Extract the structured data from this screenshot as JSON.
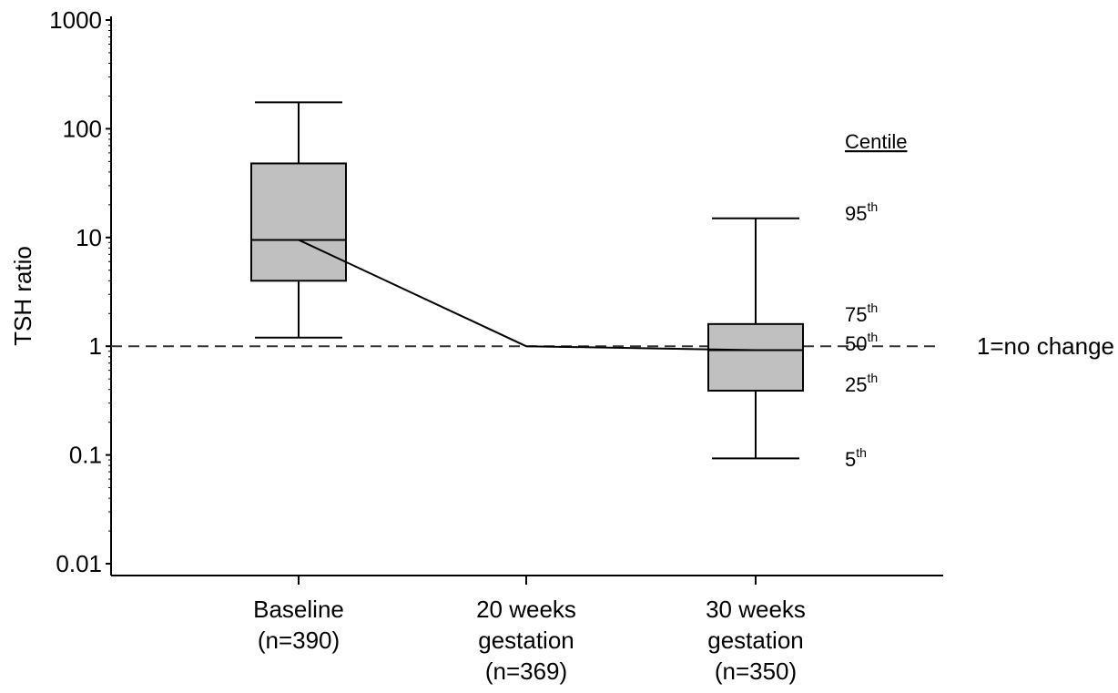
{
  "chart_data": {
    "type": "box",
    "ylabel": "TSH ratio",
    "yscale": "log",
    "ylim": [
      0.01,
      1000
    ],
    "yticks": [
      {
        "value": 0.01,
        "label": "0.01"
      },
      {
        "value": 0.1,
        "label": "0.1"
      },
      {
        "value": 1,
        "label": "1"
      },
      {
        "value": 10,
        "label": "10"
      },
      {
        "value": 100,
        "label": "100"
      },
      {
        "value": 1000,
        "label": "1000"
      }
    ],
    "categories": [
      {
        "lines": [
          "Baseline",
          "(n=390)"
        ]
      },
      {
        "lines": [
          "20 weeks",
          "gestation",
          "(n=369)"
        ]
      },
      {
        "lines": [
          "30 weeks",
          "gestation",
          "(n=350)"
        ]
      }
    ],
    "boxes": [
      {
        "category": 0,
        "p5": 1.2,
        "p25": 4.0,
        "p50": 9.5,
        "p75": 48,
        "p95": 175
      },
      {
        "category": 2,
        "p5": 0.093,
        "p25": 0.39,
        "p50": 0.92,
        "p75": 1.6,
        "p95": 15
      }
    ],
    "median_line": [
      {
        "category": 0,
        "value": 9.5
      },
      {
        "category": 1,
        "value": 1.0
      },
      {
        "category": 2,
        "value": 0.92
      }
    ],
    "reference_line": {
      "value": 1,
      "label": "1=no change"
    },
    "legend": {
      "title": "Centile",
      "entries": [
        {
          "base": "95",
          "sup": "th",
          "value": 15
        },
        {
          "base": "75",
          "sup": "th",
          "value": 2.2
        },
        {
          "base": "50",
          "sup": "th",
          "value": 1.0
        },
        {
          "base": "25",
          "sup": "th",
          "value": 0.45
        },
        {
          "base": "5",
          "sup": "th",
          "value": 0.095
        }
      ]
    },
    "colors": {
      "box_fill": "#c0c0c0",
      "stroke": "#000000",
      "reference": "#333333"
    }
  }
}
